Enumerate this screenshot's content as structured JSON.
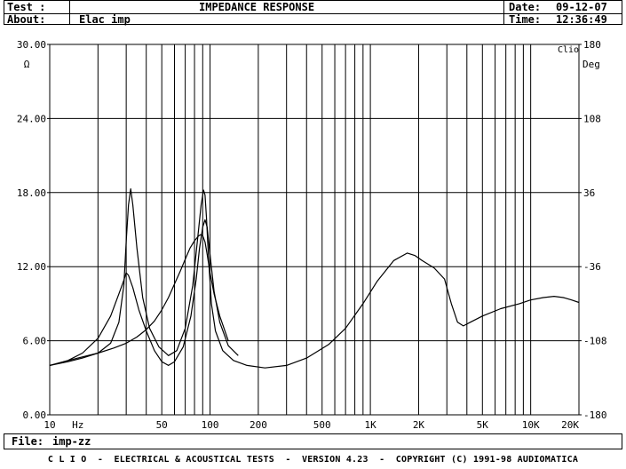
{
  "header": {
    "test_label": "Test :",
    "test_value": "IMPEDANCE RESPONSE",
    "about_label": "About:",
    "about_value": "Elac imp",
    "date_label": "Date:",
    "date_value": "09-12-07",
    "time_label": "Time:",
    "time_value": "12:36:49"
  },
  "footer": {
    "file_label": "File:",
    "file_value": "imp-zz",
    "credits": "C L I O  -  ELECTRICAL & ACOUSTICAL TESTS  -  VERSION 4.23  -  COPYRIGHT (C) 1991-98 AUDIOMATICA"
  },
  "chart_data": {
    "type": "line",
    "badge": "Clio",
    "xscale": "log",
    "xlim": [
      10,
      20000
    ],
    "xtick_labels": [
      {
        "x": 10,
        "label": "10"
      },
      {
        "x": 15,
        "label": "Hz"
      },
      {
        "x": 50,
        "label": "50"
      },
      {
        "x": 100,
        "label": "100"
      },
      {
        "x": 200,
        "label": "200"
      },
      {
        "x": 500,
        "label": "500"
      },
      {
        "x": 1000,
        "label": "1K"
      },
      {
        "x": 2000,
        "label": "2K"
      },
      {
        "x": 5000,
        "label": "5K"
      },
      {
        "x": 10000,
        "label": "10K"
      },
      {
        "x": 20000,
        "label": "20K"
      }
    ],
    "ylim_left": [
      0,
      30
    ],
    "left_unit": "Ω",
    "left_ticks": [
      "0.00",
      "6.00",
      "12.00",
      "18.00",
      "24.00",
      "30.00"
    ],
    "ylim_right": [
      -180,
      180
    ],
    "right_unit": "Deg",
    "right_ticks": [
      "-180",
      "-108",
      "-36",
      "36",
      "108",
      "180"
    ],
    "grid": true,
    "series": [
      {
        "x": [
          10,
          13,
          16,
          20,
          24,
          27,
          29,
          30,
          31,
          32,
          33,
          35,
          38,
          42,
          48,
          55,
          62,
          70,
          78,
          84,
          88,
          91,
          93,
          95,
          98,
          102,
          108,
          120,
          140,
          170,
          220,
          300,
          400,
          550,
          700,
          900,
          1100,
          1400,
          1700,
          1900,
          2100,
          2500,
          2900,
          3200,
          3500,
          3800,
          4200,
          5000,
          6500,
          8500,
          10000,
          12000,
          14000,
          16000,
          18000,
          20000
        ],
        "y": [
          4.0,
          4.3,
          4.6,
          5.0,
          5.8,
          7.5,
          10.5,
          14.0,
          17.0,
          18.3,
          17.0,
          13.5,
          9.5,
          7.0,
          5.5,
          4.8,
          5.2,
          7.0,
          10.5,
          14.5,
          17.0,
          18.2,
          17.8,
          16.0,
          12.5,
          9.0,
          6.8,
          5.2,
          4.4,
          4.0,
          3.8,
          4.0,
          4.6,
          5.7,
          7.0,
          9.0,
          10.8,
          12.5,
          13.1,
          12.9,
          12.5,
          11.9,
          11.0,
          9.0,
          7.5,
          7.2,
          7.5,
          8.0,
          8.6,
          9.0,
          9.3,
          9.5,
          9.6,
          9.5,
          9.3,
          9.1
        ]
      },
      {
        "x": [
          10,
          13,
          16,
          20,
          24,
          27,
          29,
          30,
          31,
          33,
          36,
          40,
          45,
          50,
          55,
          60,
          68,
          76,
          82,
          86,
          90,
          93,
          96,
          100,
          106,
          115,
          130,
          150
        ],
        "y": [
          4.0,
          4.4,
          5.0,
          6.2,
          8.0,
          9.8,
          10.9,
          11.5,
          11.3,
          10.3,
          8.5,
          6.8,
          5.2,
          4.3,
          4.0,
          4.3,
          5.5,
          8.0,
          11.0,
          13.5,
          15.2,
          15.8,
          15.2,
          13.0,
          10.0,
          7.5,
          5.6,
          4.8
        ]
      },
      {
        "x": [
          10,
          15,
          20,
          25,
          30,
          35,
          40,
          45,
          50,
          55,
          60,
          65,
          70,
          75,
          80,
          85,
          88,
          90,
          93,
          96,
          100,
          106,
          115,
          130
        ],
        "y": [
          4.0,
          4.6,
          5.0,
          5.4,
          5.8,
          6.3,
          6.9,
          7.6,
          8.5,
          9.5,
          10.6,
          11.6,
          12.6,
          13.5,
          14.1,
          14.5,
          14.6,
          14.5,
          14.0,
          13.0,
          11.5,
          9.8,
          8.0,
          6.0
        ]
      }
    ]
  }
}
